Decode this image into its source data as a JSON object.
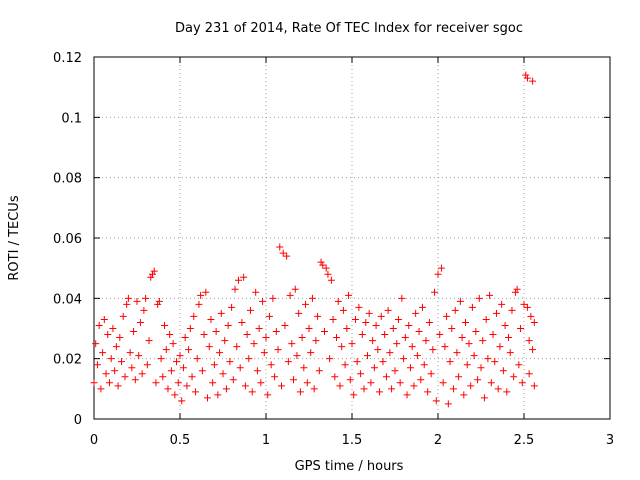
{
  "chart_data": {
    "type": "scatter",
    "title": "Day 231 of 2014, Rate Of TEC Index for receiver sgoc",
    "xlabel": "GPS time / hours",
    "ylabel": "ROTI / TECUs",
    "xlim": [
      0,
      3
    ],
    "ylim": [
      0,
      0.12
    ],
    "xticks": [
      0,
      0.5,
      1,
      1.5,
      2,
      2.5,
      3
    ],
    "xtick_labels": [
      "0",
      "0.5",
      "1",
      "1.5",
      "2",
      "2.5",
      "3"
    ],
    "yticks": [
      0,
      0.02,
      0.04,
      0.06,
      0.08,
      0.1,
      0.12
    ],
    "ytick_labels": [
      "0",
      "0.02",
      "0.04",
      "0.06",
      "0.08",
      "0.1",
      "0.12"
    ],
    "grid": true,
    "marker": "+",
    "color": "#ff0000",
    "series": [
      {
        "name": "ROTI",
        "points": [
          [
            0.0,
            0.012
          ],
          [
            0.01,
            0.025
          ],
          [
            0.02,
            0.018
          ],
          [
            0.03,
            0.031
          ],
          [
            0.04,
            0.01
          ],
          [
            0.05,
            0.022
          ],
          [
            0.06,
            0.033
          ],
          [
            0.07,
            0.015
          ],
          [
            0.08,
            0.028
          ],
          [
            0.09,
            0.012
          ],
          [
            0.1,
            0.02
          ],
          [
            0.11,
            0.03
          ],
          [
            0.12,
            0.016
          ],
          [
            0.13,
            0.024
          ],
          [
            0.14,
            0.011
          ],
          [
            0.15,
            0.027
          ],
          [
            0.16,
            0.019
          ],
          [
            0.17,
            0.034
          ],
          [
            0.18,
            0.014
          ],
          [
            0.19,
            0.038
          ],
          [
            0.2,
            0.04
          ],
          [
            0.21,
            0.022
          ],
          [
            0.22,
            0.017
          ],
          [
            0.23,
            0.029
          ],
          [
            0.24,
            0.013
          ],
          [
            0.25,
            0.039
          ],
          [
            0.26,
            0.021
          ],
          [
            0.27,
            0.032
          ],
          [
            0.28,
            0.015
          ],
          [
            0.29,
            0.036
          ],
          [
            0.3,
            0.04
          ],
          [
            0.31,
            0.018
          ],
          [
            0.32,
            0.026
          ],
          [
            0.33,
            0.047
          ],
          [
            0.34,
            0.048
          ],
          [
            0.35,
            0.049
          ],
          [
            0.36,
            0.012
          ],
          [
            0.37,
            0.038
          ],
          [
            0.38,
            0.039
          ],
          [
            0.39,
            0.02
          ],
          [
            0.4,
            0.014
          ],
          [
            0.41,
            0.031
          ],
          [
            0.42,
            0.023
          ],
          [
            0.43,
            0.01
          ],
          [
            0.44,
            0.028
          ],
          [
            0.45,
            0.016
          ],
          [
            0.46,
            0.025
          ],
          [
            0.47,
            0.008
          ],
          [
            0.48,
            0.019
          ],
          [
            0.49,
            0.012
          ],
          [
            0.5,
            0.021
          ],
          [
            0.51,
            0.006
          ],
          [
            0.52,
            0.017
          ],
          [
            0.53,
            0.027
          ],
          [
            0.54,
            0.011
          ],
          [
            0.55,
            0.023
          ],
          [
            0.56,
            0.03
          ],
          [
            0.57,
            0.014
          ],
          [
            0.58,
            0.034
          ],
          [
            0.59,
            0.009
          ],
          [
            0.6,
            0.02
          ],
          [
            0.61,
            0.038
          ],
          [
            0.62,
            0.041
          ],
          [
            0.63,
            0.016
          ],
          [
            0.64,
            0.028
          ],
          [
            0.65,
            0.042
          ],
          [
            0.66,
            0.007
          ],
          [
            0.67,
            0.024
          ],
          [
            0.68,
            0.033
          ],
          [
            0.69,
            0.012
          ],
          [
            0.7,
            0.018
          ],
          [
            0.71,
            0.029
          ],
          [
            0.72,
            0.008
          ],
          [
            0.73,
            0.022
          ],
          [
            0.74,
            0.035
          ],
          [
            0.75,
            0.015
          ],
          [
            0.76,
            0.026
          ],
          [
            0.77,
            0.01
          ],
          [
            0.78,
            0.031
          ],
          [
            0.79,
            0.019
          ],
          [
            0.8,
            0.037
          ],
          [
            0.81,
            0.013
          ],
          [
            0.82,
            0.043
          ],
          [
            0.83,
            0.024
          ],
          [
            0.84,
            0.046
          ],
          [
            0.85,
            0.017
          ],
          [
            0.86,
            0.032
          ],
          [
            0.87,
            0.047
          ],
          [
            0.88,
            0.011
          ],
          [
            0.89,
            0.028
          ],
          [
            0.9,
            0.02
          ],
          [
            0.91,
            0.036
          ],
          [
            0.92,
            0.009
          ],
          [
            0.93,
            0.025
          ],
          [
            0.94,
            0.042
          ],
          [
            0.95,
            0.016
          ],
          [
            0.96,
            0.03
          ],
          [
            0.97,
            0.012
          ],
          [
            0.98,
            0.039
          ],
          [
            0.99,
            0.022
          ],
          [
            1.0,
            0.027
          ],
          [
            1.01,
            0.008
          ],
          [
            1.02,
            0.034
          ],
          [
            1.03,
            0.018
          ],
          [
            1.04,
            0.04
          ],
          [
            1.05,
            0.014
          ],
          [
            1.06,
            0.029
          ],
          [
            1.07,
            0.023
          ],
          [
            1.08,
            0.057
          ],
          [
            1.09,
            0.011
          ],
          [
            1.1,
            0.055
          ],
          [
            1.11,
            0.031
          ],
          [
            1.12,
            0.054
          ],
          [
            1.13,
            0.019
          ],
          [
            1.14,
            0.041
          ],
          [
            1.15,
            0.025
          ],
          [
            1.16,
            0.013
          ],
          [
            1.17,
            0.043
          ],
          [
            1.18,
            0.021
          ],
          [
            1.19,
            0.035
          ],
          [
            1.2,
            0.009
          ],
          [
            1.21,
            0.027
          ],
          [
            1.22,
            0.017
          ],
          [
            1.23,
            0.038
          ],
          [
            1.24,
            0.012
          ],
          [
            1.25,
            0.03
          ],
          [
            1.26,
            0.022
          ],
          [
            1.27,
            0.04
          ],
          [
            1.28,
            0.01
          ],
          [
            1.29,
            0.026
          ],
          [
            1.3,
            0.034
          ],
          [
            1.31,
            0.016
          ],
          [
            1.32,
            0.052
          ],
          [
            1.33,
            0.051
          ],
          [
            1.34,
            0.029
          ],
          [
            1.35,
            0.05
          ],
          [
            1.36,
            0.048
          ],
          [
            1.37,
            0.02
          ],
          [
            1.38,
            0.046
          ],
          [
            1.39,
            0.033
          ],
          [
            1.4,
            0.014
          ],
          [
            1.41,
            0.027
          ],
          [
            1.42,
            0.039
          ],
          [
            1.43,
            0.011
          ],
          [
            1.44,
            0.024
          ],
          [
            1.45,
            0.036
          ],
          [
            1.46,
            0.018
          ],
          [
            1.47,
            0.03
          ],
          [
            1.48,
            0.041
          ],
          [
            1.49,
            0.013
          ],
          [
            1.5,
            0.025
          ],
          [
            1.51,
            0.008
          ],
          [
            1.52,
            0.033
          ],
          [
            1.53,
            0.019
          ],
          [
            1.54,
            0.037
          ],
          [
            1.55,
            0.015
          ],
          [
            1.56,
            0.028
          ],
          [
            1.57,
            0.01
          ],
          [
            1.58,
            0.032
          ],
          [
            1.59,
            0.021
          ],
          [
            1.6,
            0.035
          ],
          [
            1.61,
            0.012
          ],
          [
            1.62,
            0.026
          ],
          [
            1.63,
            0.017
          ],
          [
            1.64,
            0.031
          ],
          [
            1.65,
            0.023
          ],
          [
            1.66,
            0.009
          ],
          [
            1.67,
            0.034
          ],
          [
            1.68,
            0.019
          ],
          [
            1.69,
            0.028
          ],
          [
            1.7,
            0.014
          ],
          [
            1.71,
            0.036
          ],
          [
            1.72,
            0.022
          ],
          [
            1.73,
            0.01
          ],
          [
            1.74,
            0.03
          ],
          [
            1.75,
            0.016
          ],
          [
            1.76,
            0.025
          ],
          [
            1.77,
            0.033
          ],
          [
            1.78,
            0.012
          ],
          [
            1.79,
            0.04
          ],
          [
            1.8,
            0.02
          ],
          [
            1.81,
            0.027
          ],
          [
            1.82,
            0.008
          ],
          [
            1.83,
            0.031
          ],
          [
            1.84,
            0.017
          ],
          [
            1.85,
            0.024
          ],
          [
            1.86,
            0.011
          ],
          [
            1.87,
            0.035
          ],
          [
            1.88,
            0.021
          ],
          [
            1.89,
            0.029
          ],
          [
            1.9,
            0.013
          ],
          [
            1.91,
            0.037
          ],
          [
            1.92,
            0.018
          ],
          [
            1.93,
            0.026
          ],
          [
            1.94,
            0.009
          ],
          [
            1.95,
            0.032
          ],
          [
            1.96,
            0.015
          ],
          [
            1.97,
            0.023
          ],
          [
            1.98,
            0.042
          ],
          [
            1.99,
            0.006
          ],
          [
            2.0,
            0.048
          ],
          [
            2.01,
            0.028
          ],
          [
            2.02,
            0.05
          ],
          [
            2.03,
            0.012
          ],
          [
            2.04,
            0.024
          ],
          [
            2.05,
            0.034
          ],
          [
            2.06,
            0.005
          ],
          [
            2.07,
            0.019
          ],
          [
            2.08,
            0.03
          ],
          [
            2.09,
            0.01
          ],
          [
            2.1,
            0.036
          ],
          [
            2.11,
            0.022
          ],
          [
            2.12,
            0.014
          ],
          [
            2.13,
            0.039
          ],
          [
            2.14,
            0.027
          ],
          [
            2.15,
            0.008
          ],
          [
            2.16,
            0.032
          ],
          [
            2.17,
            0.018
          ],
          [
            2.18,
            0.025
          ],
          [
            2.19,
            0.011
          ],
          [
            2.2,
            0.037
          ],
          [
            2.21,
            0.021
          ],
          [
            2.22,
            0.029
          ],
          [
            2.23,
            0.013
          ],
          [
            2.24,
            0.04
          ],
          [
            2.25,
            0.017
          ],
          [
            2.26,
            0.026
          ],
          [
            2.27,
            0.007
          ],
          [
            2.28,
            0.033
          ],
          [
            2.29,
            0.02
          ],
          [
            2.3,
            0.041
          ],
          [
            2.31,
            0.012
          ],
          [
            2.32,
            0.028
          ],
          [
            2.33,
            0.019
          ],
          [
            2.34,
            0.035
          ],
          [
            2.35,
            0.01
          ],
          [
            2.36,
            0.024
          ],
          [
            2.37,
            0.038
          ],
          [
            2.38,
            0.016
          ],
          [
            2.39,
            0.031
          ],
          [
            2.4,
            0.009
          ],
          [
            2.41,
            0.027
          ],
          [
            2.42,
            0.022
          ],
          [
            2.43,
            0.036
          ],
          [
            2.44,
            0.014
          ],
          [
            2.45,
            0.042
          ],
          [
            2.46,
            0.043
          ],
          [
            2.47,
            0.018
          ],
          [
            2.48,
            0.03
          ],
          [
            2.49,
            0.012
          ],
          [
            2.5,
            0.038
          ],
          [
            2.51,
            0.114
          ],
          [
            2.52,
            0.113
          ],
          [
            2.53,
            0.015
          ],
          [
            2.54,
            0.034
          ],
          [
            2.55,
            0.112
          ],
          [
            2.55,
            0.023
          ],
          [
            2.56,
            0.032
          ],
          [
            2.56,
            0.011
          ],
          [
            2.52,
            0.037
          ],
          [
            2.53,
            0.026
          ]
        ]
      }
    ]
  }
}
